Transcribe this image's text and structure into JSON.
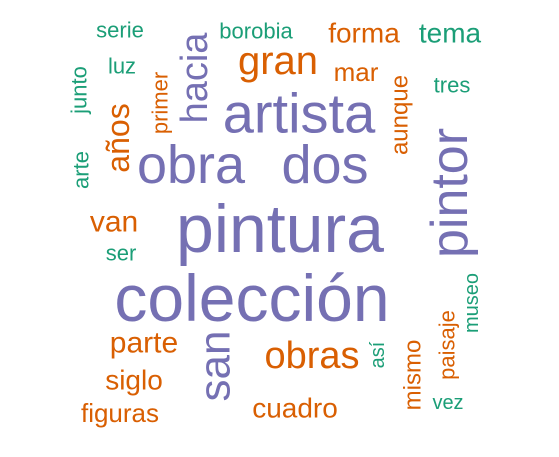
{
  "colors": {
    "purple": "#7570b3",
    "orange": "#d95f02",
    "green": "#1b9e77"
  },
  "words": [
    {
      "text": "colección",
      "color": "purple"
    },
    {
      "text": "pintura",
      "color": "purple"
    },
    {
      "text": "obra",
      "color": "purple"
    },
    {
      "text": "dos",
      "color": "purple"
    },
    {
      "text": "artista",
      "color": "purple"
    },
    {
      "text": "pintor",
      "color": "purple"
    },
    {
      "text": "san",
      "color": "purple"
    },
    {
      "text": "hacia",
      "color": "purple"
    },
    {
      "text": "gran",
      "color": "orange"
    },
    {
      "text": "años",
      "color": "orange"
    },
    {
      "text": "obras",
      "color": "orange"
    },
    {
      "text": "van",
      "color": "orange"
    },
    {
      "text": "parte",
      "color": "orange"
    },
    {
      "text": "siglo",
      "color": "orange"
    },
    {
      "text": "figuras",
      "color": "orange"
    },
    {
      "text": "cuadro",
      "color": "orange"
    },
    {
      "text": "forma",
      "color": "orange"
    },
    {
      "text": "mar",
      "color": "orange"
    },
    {
      "text": "aunque",
      "color": "orange"
    },
    {
      "text": "primer",
      "color": "orange"
    },
    {
      "text": "mismo",
      "color": "orange"
    },
    {
      "text": "paisaje",
      "color": "orange"
    },
    {
      "text": "serie",
      "color": "green"
    },
    {
      "text": "borobia",
      "color": "green"
    },
    {
      "text": "tema",
      "color": "green"
    },
    {
      "text": "luz",
      "color": "green"
    },
    {
      "text": "junto",
      "color": "green"
    },
    {
      "text": "tres",
      "color": "green"
    },
    {
      "text": "arte",
      "color": "green"
    },
    {
      "text": "ser",
      "color": "green"
    },
    {
      "text": "museo",
      "color": "green"
    },
    {
      "text": "así",
      "color": "green"
    },
    {
      "text": "vez",
      "color": "green"
    }
  ]
}
